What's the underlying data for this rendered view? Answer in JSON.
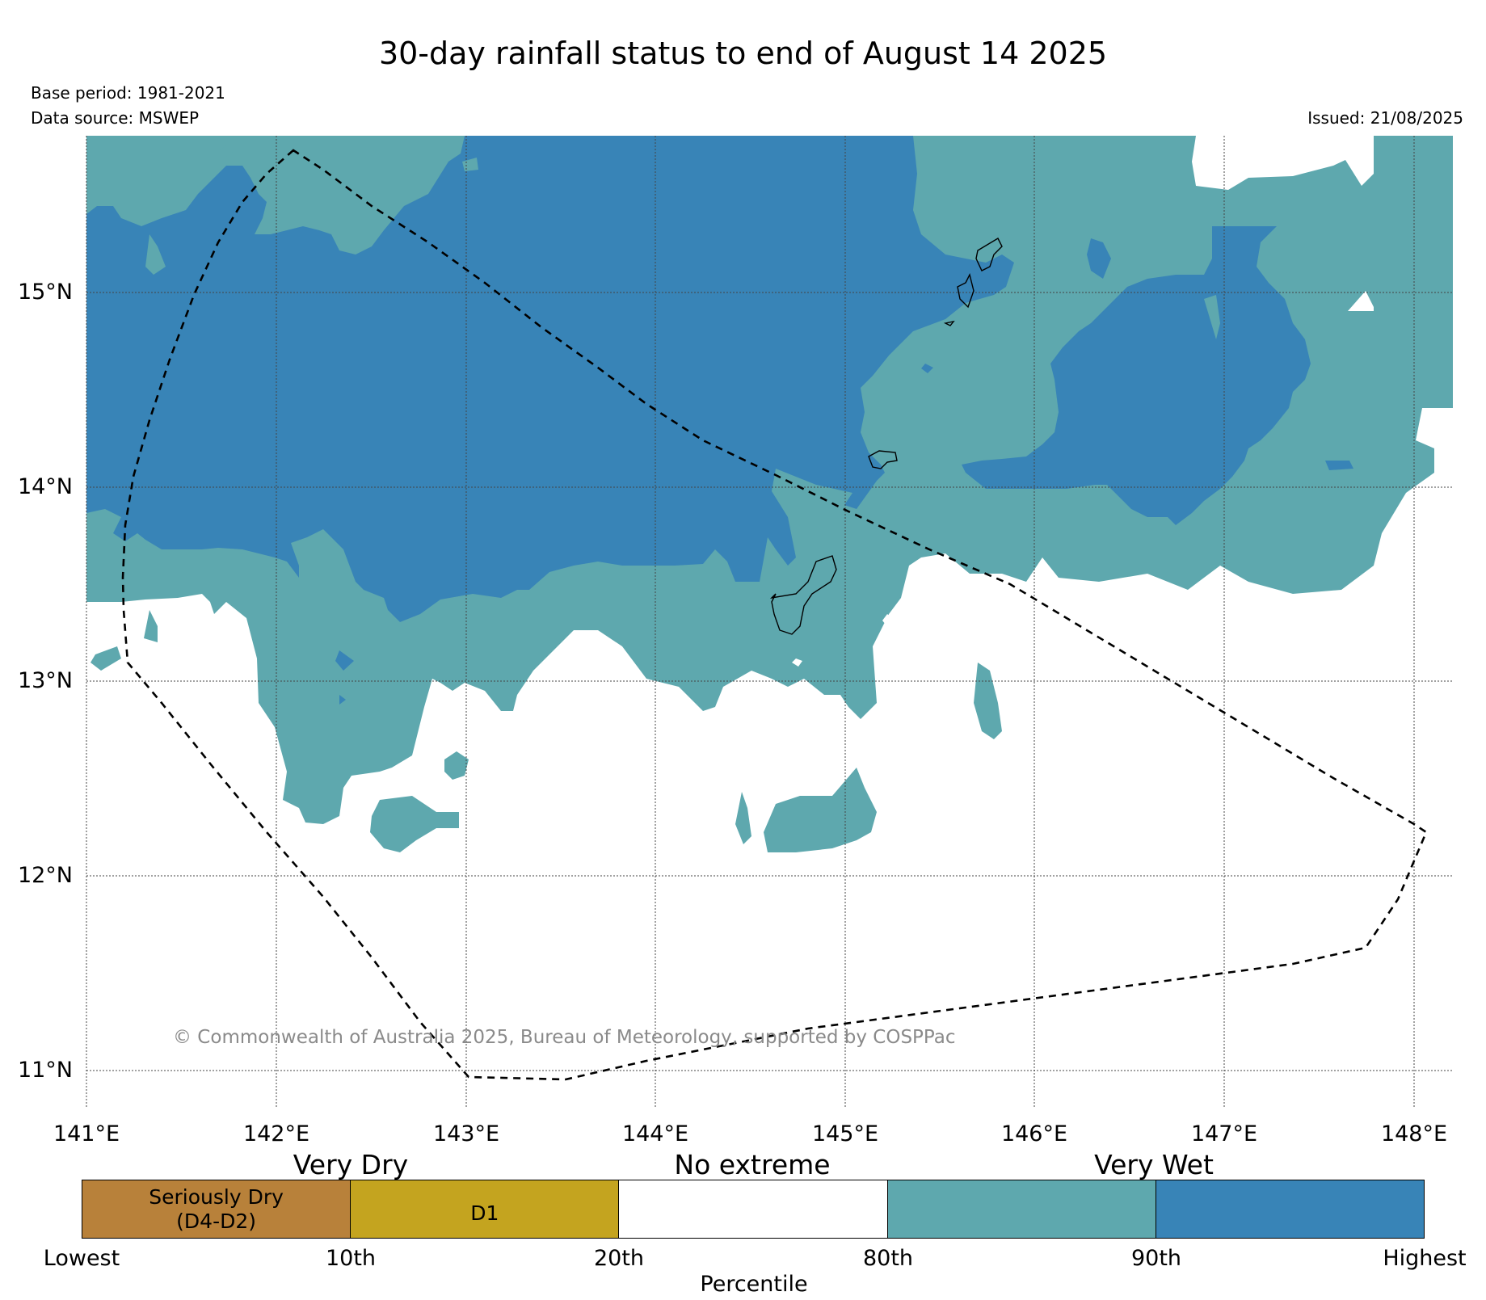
{
  "title": "30-day rainfall status to end of August 14 2025",
  "base_period": "Base period: 1981-2021",
  "data_source": "Data source: MSWEP",
  "issued": "Issued: 21/08/2025",
  "copyright": "© Commonwealth of Australia 2025, Bureau of Meteorology, supported by COSPPac",
  "map": {
    "lon_ticks": [
      "141°E",
      "142°E",
      "143°E",
      "144°E",
      "145°E",
      "146°E",
      "147°E",
      "148°E"
    ],
    "lat_ticks": [
      "15°N",
      "14°N",
      "13°N",
      "12°N",
      "11°N"
    ],
    "lon_range": [
      141.0,
      148.2
    ],
    "lat_range": [
      10.9,
      15.8
    ],
    "grid": true,
    "boundary_style": "dashed"
  },
  "legend": {
    "categories": [
      "Very Dry",
      "No extreme",
      "Very Wet"
    ],
    "bins": [
      {
        "label": "Seriously Dry\n(D4-D2)",
        "color": "#b8813a"
      },
      {
        "label": "D1",
        "color": "#c4a41f"
      },
      {
        "label": "",
        "color": "#ffffff"
      },
      {
        "label": "",
        "color": "#5ea8ae"
      },
      {
        "label": "",
        "color": "#3884b7"
      }
    ],
    "bounds": [
      "Lowest",
      "10th",
      "20th",
      "80th",
      "90th",
      "Highest"
    ],
    "axis_label": "Percentile"
  },
  "colors": {
    "very_wet_80_90": "#5ea8ae",
    "very_wet_90_plus": "#3884b7",
    "no_extreme": "#ffffff",
    "d1": "#c4a41f",
    "seriously_dry": "#b8813a"
  }
}
